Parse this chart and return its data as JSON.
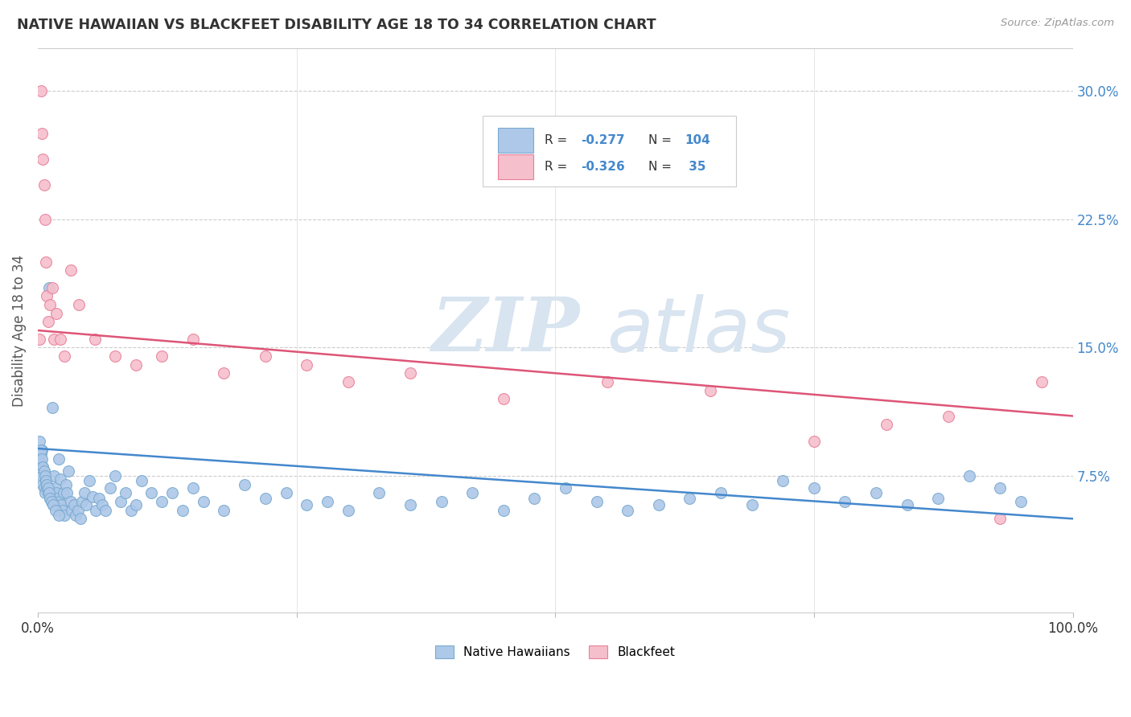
{
  "title": "NATIVE HAWAIIAN VS BLACKFEET DISABILITY AGE 18 TO 34 CORRELATION CHART",
  "source": "Source: ZipAtlas.com",
  "ylabel": "Disability Age 18 to 34",
  "yticks": [
    0.0,
    0.075,
    0.15,
    0.225,
    0.3
  ],
  "ytick_labels": [
    "",
    "7.5%",
    "15.0%",
    "22.5%",
    "30.0%"
  ],
  "xlim": [
    0.0,
    1.0
  ],
  "ylim": [
    -0.005,
    0.325
  ],
  "nh_color": "#adc8e8",
  "nh_edge_color": "#7aaad0",
  "bf_color": "#f5bfcc",
  "bf_edge_color": "#e8809a",
  "trend_nh_color": "#4488cc",
  "trend_bf_color": "#dd5577",
  "legend_label_nh": "Native Hawaiians",
  "legend_label_bf": "Blackfeet",
  "watermark_zip": "ZIP",
  "watermark_atlas": "atlas",
  "nh_trend_x0": 0.0,
  "nh_trend_y0": 0.091,
  "nh_trend_x1": 1.0,
  "nh_trend_y1": 0.05,
  "bf_trend_x0": 0.0,
  "bf_trend_y0": 0.16,
  "bf_trend_x1": 1.0,
  "bf_trend_y1": 0.11,
  "nh_x": [
    0.002,
    0.003,
    0.003,
    0.004,
    0.004,
    0.005,
    0.005,
    0.006,
    0.006,
    0.007,
    0.007,
    0.008,
    0.009,
    0.01,
    0.011,
    0.012,
    0.013,
    0.014,
    0.015,
    0.016,
    0.017,
    0.018,
    0.019,
    0.02,
    0.021,
    0.022,
    0.023,
    0.024,
    0.025,
    0.026,
    0.027,
    0.028,
    0.03,
    0.032,
    0.033,
    0.035,
    0.037,
    0.039,
    0.041,
    0.043,
    0.045,
    0.047,
    0.05,
    0.053,
    0.056,
    0.059,
    0.062,
    0.065,
    0.07,
    0.075,
    0.08,
    0.085,
    0.09,
    0.095,
    0.1,
    0.11,
    0.12,
    0.13,
    0.14,
    0.15,
    0.16,
    0.18,
    0.2,
    0.22,
    0.24,
    0.26,
    0.28,
    0.3,
    0.33,
    0.36,
    0.39,
    0.42,
    0.45,
    0.48,
    0.51,
    0.54,
    0.57,
    0.6,
    0.63,
    0.66,
    0.69,
    0.72,
    0.75,
    0.78,
    0.81,
    0.84,
    0.87,
    0.9,
    0.93,
    0.95,
    0.003,
    0.004,
    0.005,
    0.006,
    0.007,
    0.008,
    0.009,
    0.01,
    0.011,
    0.012,
    0.013,
    0.015,
    0.017,
    0.02
  ],
  "nh_y": [
    0.095,
    0.082,
    0.088,
    0.075,
    0.09,
    0.07,
    0.08,
    0.068,
    0.078,
    0.065,
    0.075,
    0.072,
    0.068,
    0.065,
    0.185,
    0.062,
    0.06,
    0.115,
    0.058,
    0.075,
    0.068,
    0.065,
    0.062,
    0.085,
    0.06,
    0.073,
    0.058,
    0.055,
    0.065,
    0.052,
    0.07,
    0.065,
    0.078,
    0.06,
    0.055,
    0.058,
    0.052,
    0.055,
    0.05,
    0.06,
    0.065,
    0.058,
    0.072,
    0.063,
    0.055,
    0.062,
    0.058,
    0.055,
    0.068,
    0.075,
    0.06,
    0.065,
    0.055,
    0.058,
    0.072,
    0.065,
    0.06,
    0.065,
    0.055,
    0.068,
    0.06,
    0.055,
    0.07,
    0.062,
    0.065,
    0.058,
    0.06,
    0.055,
    0.065,
    0.058,
    0.06,
    0.065,
    0.055,
    0.062,
    0.068,
    0.06,
    0.055,
    0.058,
    0.062,
    0.065,
    0.058,
    0.072,
    0.068,
    0.06,
    0.065,
    0.058,
    0.062,
    0.075,
    0.068,
    0.06,
    0.09,
    0.085,
    0.08,
    0.078,
    0.075,
    0.072,
    0.07,
    0.068,
    0.065,
    0.062,
    0.06,
    0.058,
    0.055,
    0.052
  ],
  "bf_x": [
    0.002,
    0.003,
    0.004,
    0.005,
    0.006,
    0.007,
    0.008,
    0.009,
    0.01,
    0.012,
    0.014,
    0.016,
    0.018,
    0.022,
    0.026,
    0.032,
    0.04,
    0.055,
    0.075,
    0.095,
    0.12,
    0.15,
    0.18,
    0.22,
    0.26,
    0.3,
    0.36,
    0.45,
    0.55,
    0.65,
    0.75,
    0.82,
    0.88,
    0.93,
    0.97
  ],
  "bf_y": [
    0.155,
    0.3,
    0.275,
    0.26,
    0.245,
    0.225,
    0.2,
    0.18,
    0.165,
    0.175,
    0.185,
    0.155,
    0.17,
    0.155,
    0.145,
    0.195,
    0.175,
    0.155,
    0.145,
    0.14,
    0.145,
    0.155,
    0.135,
    0.145,
    0.14,
    0.13,
    0.135,
    0.12,
    0.13,
    0.125,
    0.095,
    0.105,
    0.11,
    0.05,
    0.13
  ]
}
